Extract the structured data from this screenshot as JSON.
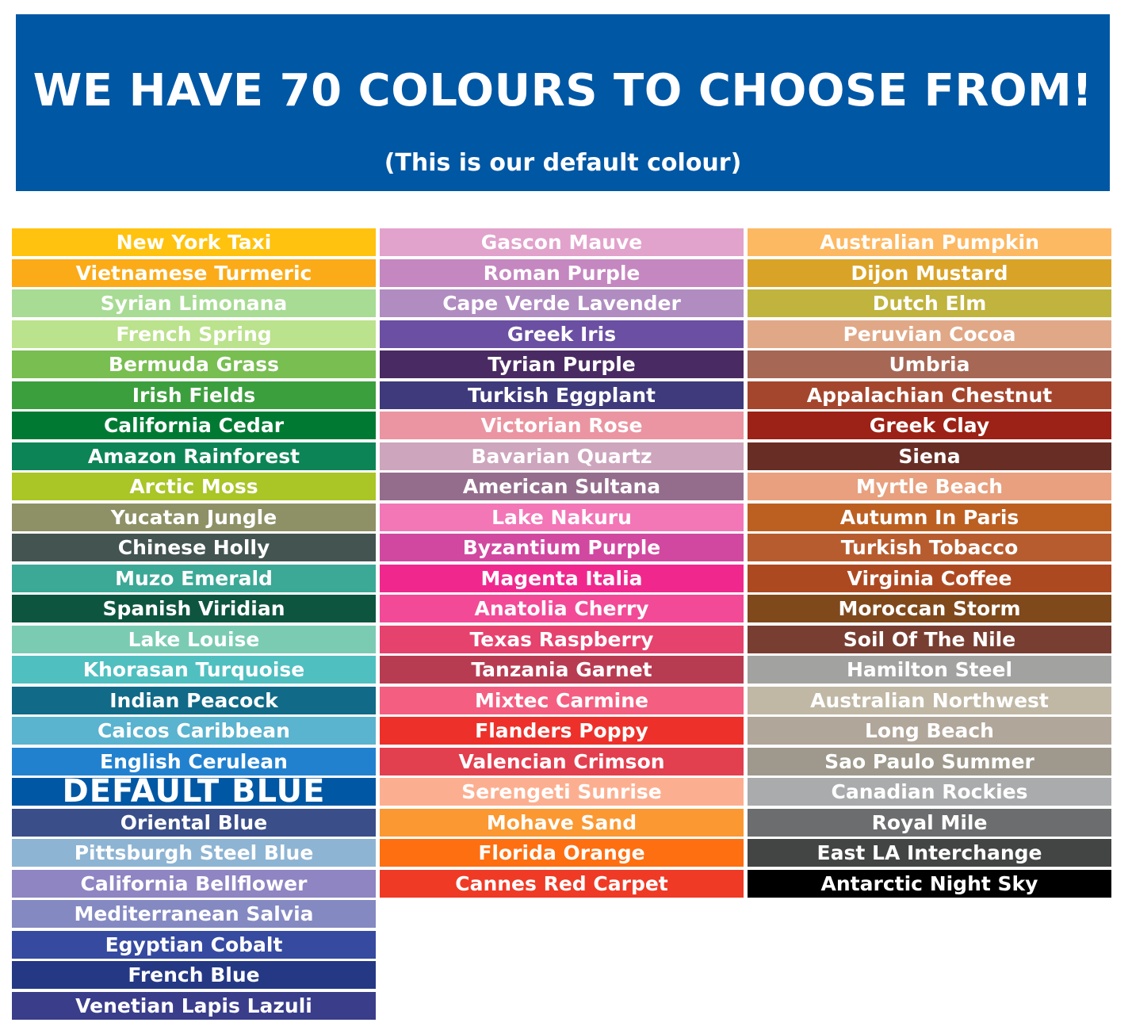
{
  "header": {
    "title": "WE HAVE 70 COLOURS TO CHOOSE FROM!",
    "subtitle": "(This is our default colour)",
    "color": "#0057A4"
  },
  "columns": [
    [
      {
        "name": "New York Taxi",
        "color": "#FFC20E"
      },
      {
        "name": "Vietnamese Turmeric",
        "color": "#FBAB18"
      },
      {
        "name": "Syrian Limonana",
        "color": "#A8DB94"
      },
      {
        "name": "French Spring",
        "color": "#BBE28C"
      },
      {
        "name": "Bermuda Grass",
        "color": "#78BE51"
      },
      {
        "name": "Irish Fields",
        "color": "#3C9F3E"
      },
      {
        "name": "California Cedar",
        "color": "#007A33"
      },
      {
        "name": "Amazon Rainforest",
        "color": "#0D8456"
      },
      {
        "name": "Arctic Moss",
        "color": "#A9C526"
      },
      {
        "name": "Yucatan Jungle",
        "color": "#8E9066"
      },
      {
        "name": "Chinese Holly",
        "color": "#435451"
      },
      {
        "name": "Muzo Emerald",
        "color": "#3CA896"
      },
      {
        "name": "Spanish Viridian",
        "color": "#0E5540"
      },
      {
        "name": "Lake Louise",
        "color": "#7BCBB3"
      },
      {
        "name": "Khorasan Turquoise",
        "color": "#50BFC0"
      },
      {
        "name": "Indian Peacock",
        "color": "#116A87"
      },
      {
        "name": "Caicos Caribbean",
        "color": "#5AB3CF"
      },
      {
        "name": "English Cerulean",
        "color": "#2281CF"
      },
      {
        "name": "DEFAULT BLUE",
        "color": "#0057A4",
        "default": true
      },
      {
        "name": "Oriental Blue",
        "color": "#3A4E8A"
      },
      {
        "name": "Pittsburgh Steel Blue",
        "color": "#8EB4D3"
      },
      {
        "name": "California Bellflower",
        "color": "#8E85C2"
      },
      {
        "name": "Mediterranean Salvia",
        "color": "#8489C2"
      },
      {
        "name": "Egyptian Cobalt",
        "color": "#364AA0"
      },
      {
        "name": "French Blue",
        "color": "#253884"
      },
      {
        "name": "Venetian Lapis Lazuli",
        "color": "#3A3D8A"
      }
    ],
    [
      {
        "name": "Gascon Mauve",
        "color": "#E1A2CB"
      },
      {
        "name": "Roman Purple",
        "color": "#C487C0"
      },
      {
        "name": "Cape Verde Lavender",
        "color": "#B08CC1"
      },
      {
        "name": "Greek Iris",
        "color": "#6B4FA2"
      },
      {
        "name": "Tyrian Purple",
        "color": "#492A62"
      },
      {
        "name": "Turkish Eggplant",
        "color": "#3E3A7B"
      },
      {
        "name": "Victorian Rose",
        "color": "#EA95A1"
      },
      {
        "name": "Bavarian Quartz",
        "color": "#CDA5BD"
      },
      {
        "name": "American Sultana",
        "color": "#946D8C"
      },
      {
        "name": "Lake Nakuru",
        "color": "#F376B7"
      },
      {
        "name": "Byzantium Purple",
        "color": "#D148A0"
      },
      {
        "name": "Magenta Italia",
        "color": "#F0288D"
      },
      {
        "name": "Anatolia Cherry",
        "color": "#F24A97"
      },
      {
        "name": "Texas Raspberry",
        "color": "#E5426E"
      },
      {
        "name": "Tanzania Garnet",
        "color": "#B73C52"
      },
      {
        "name": "Mixtec Carmine",
        "color": "#F45E80"
      },
      {
        "name": "Flanders Poppy",
        "color": "#EE302A"
      },
      {
        "name": "Valencian Crimson",
        "color": "#E23F4F"
      },
      {
        "name": "Serengeti Sunrise",
        "color": "#FCAF90"
      },
      {
        "name": "Mohave Sand",
        "color": "#FB9832"
      },
      {
        "name": "Florida Orange",
        "color": "#FE6F11"
      },
      {
        "name": "Cannes Red Carpet",
        "color": "#EF3A26"
      }
    ],
    [
      {
        "name": "Australian Pumpkin",
        "color": "#FDB862"
      },
      {
        "name": "Dijon Mustard",
        "color": "#D9A327"
      },
      {
        "name": "Dutch Elm",
        "color": "#C0B33E"
      },
      {
        "name": "Peruvian Cocoa",
        "color": "#E0A887"
      },
      {
        "name": "Umbria",
        "color": "#A66755"
      },
      {
        "name": "Appalachian Chestnut",
        "color": "#A4462E"
      },
      {
        "name": "Greek Clay",
        "color": "#9C2116"
      },
      {
        "name": "Siena",
        "color": "#682E25"
      },
      {
        "name": "Myrtle Beach",
        "color": "#E8A07E"
      },
      {
        "name": "Autumn In Paris",
        "color": "#BC6022"
      },
      {
        "name": "Turkish Tobacco",
        "color": "#B75C2F"
      },
      {
        "name": "Virginia Coffee",
        "color": "#AD4921"
      },
      {
        "name": "Moroccan Storm",
        "color": "#7F491C"
      },
      {
        "name": "Soil Of The Nile",
        "color": "#783E32"
      },
      {
        "name": "Hamilton Steel",
        "color": "#A2A3A1"
      },
      {
        "name": "Australian Northwest",
        "color": "#C0B7A5"
      },
      {
        "name": "Long Beach",
        "color": "#B1A69A"
      },
      {
        "name": "Sao Paulo Summer",
        "color": "#9E998C"
      },
      {
        "name": "Canadian Rockies",
        "color": "#A9ABAC"
      },
      {
        "name": "Royal Mile",
        "color": "#6C6D6E"
      },
      {
        "name": "East LA Interchange",
        "color": "#434544"
      },
      {
        "name": "Antarctic Night Sky",
        "color": "#000000"
      }
    ]
  ]
}
